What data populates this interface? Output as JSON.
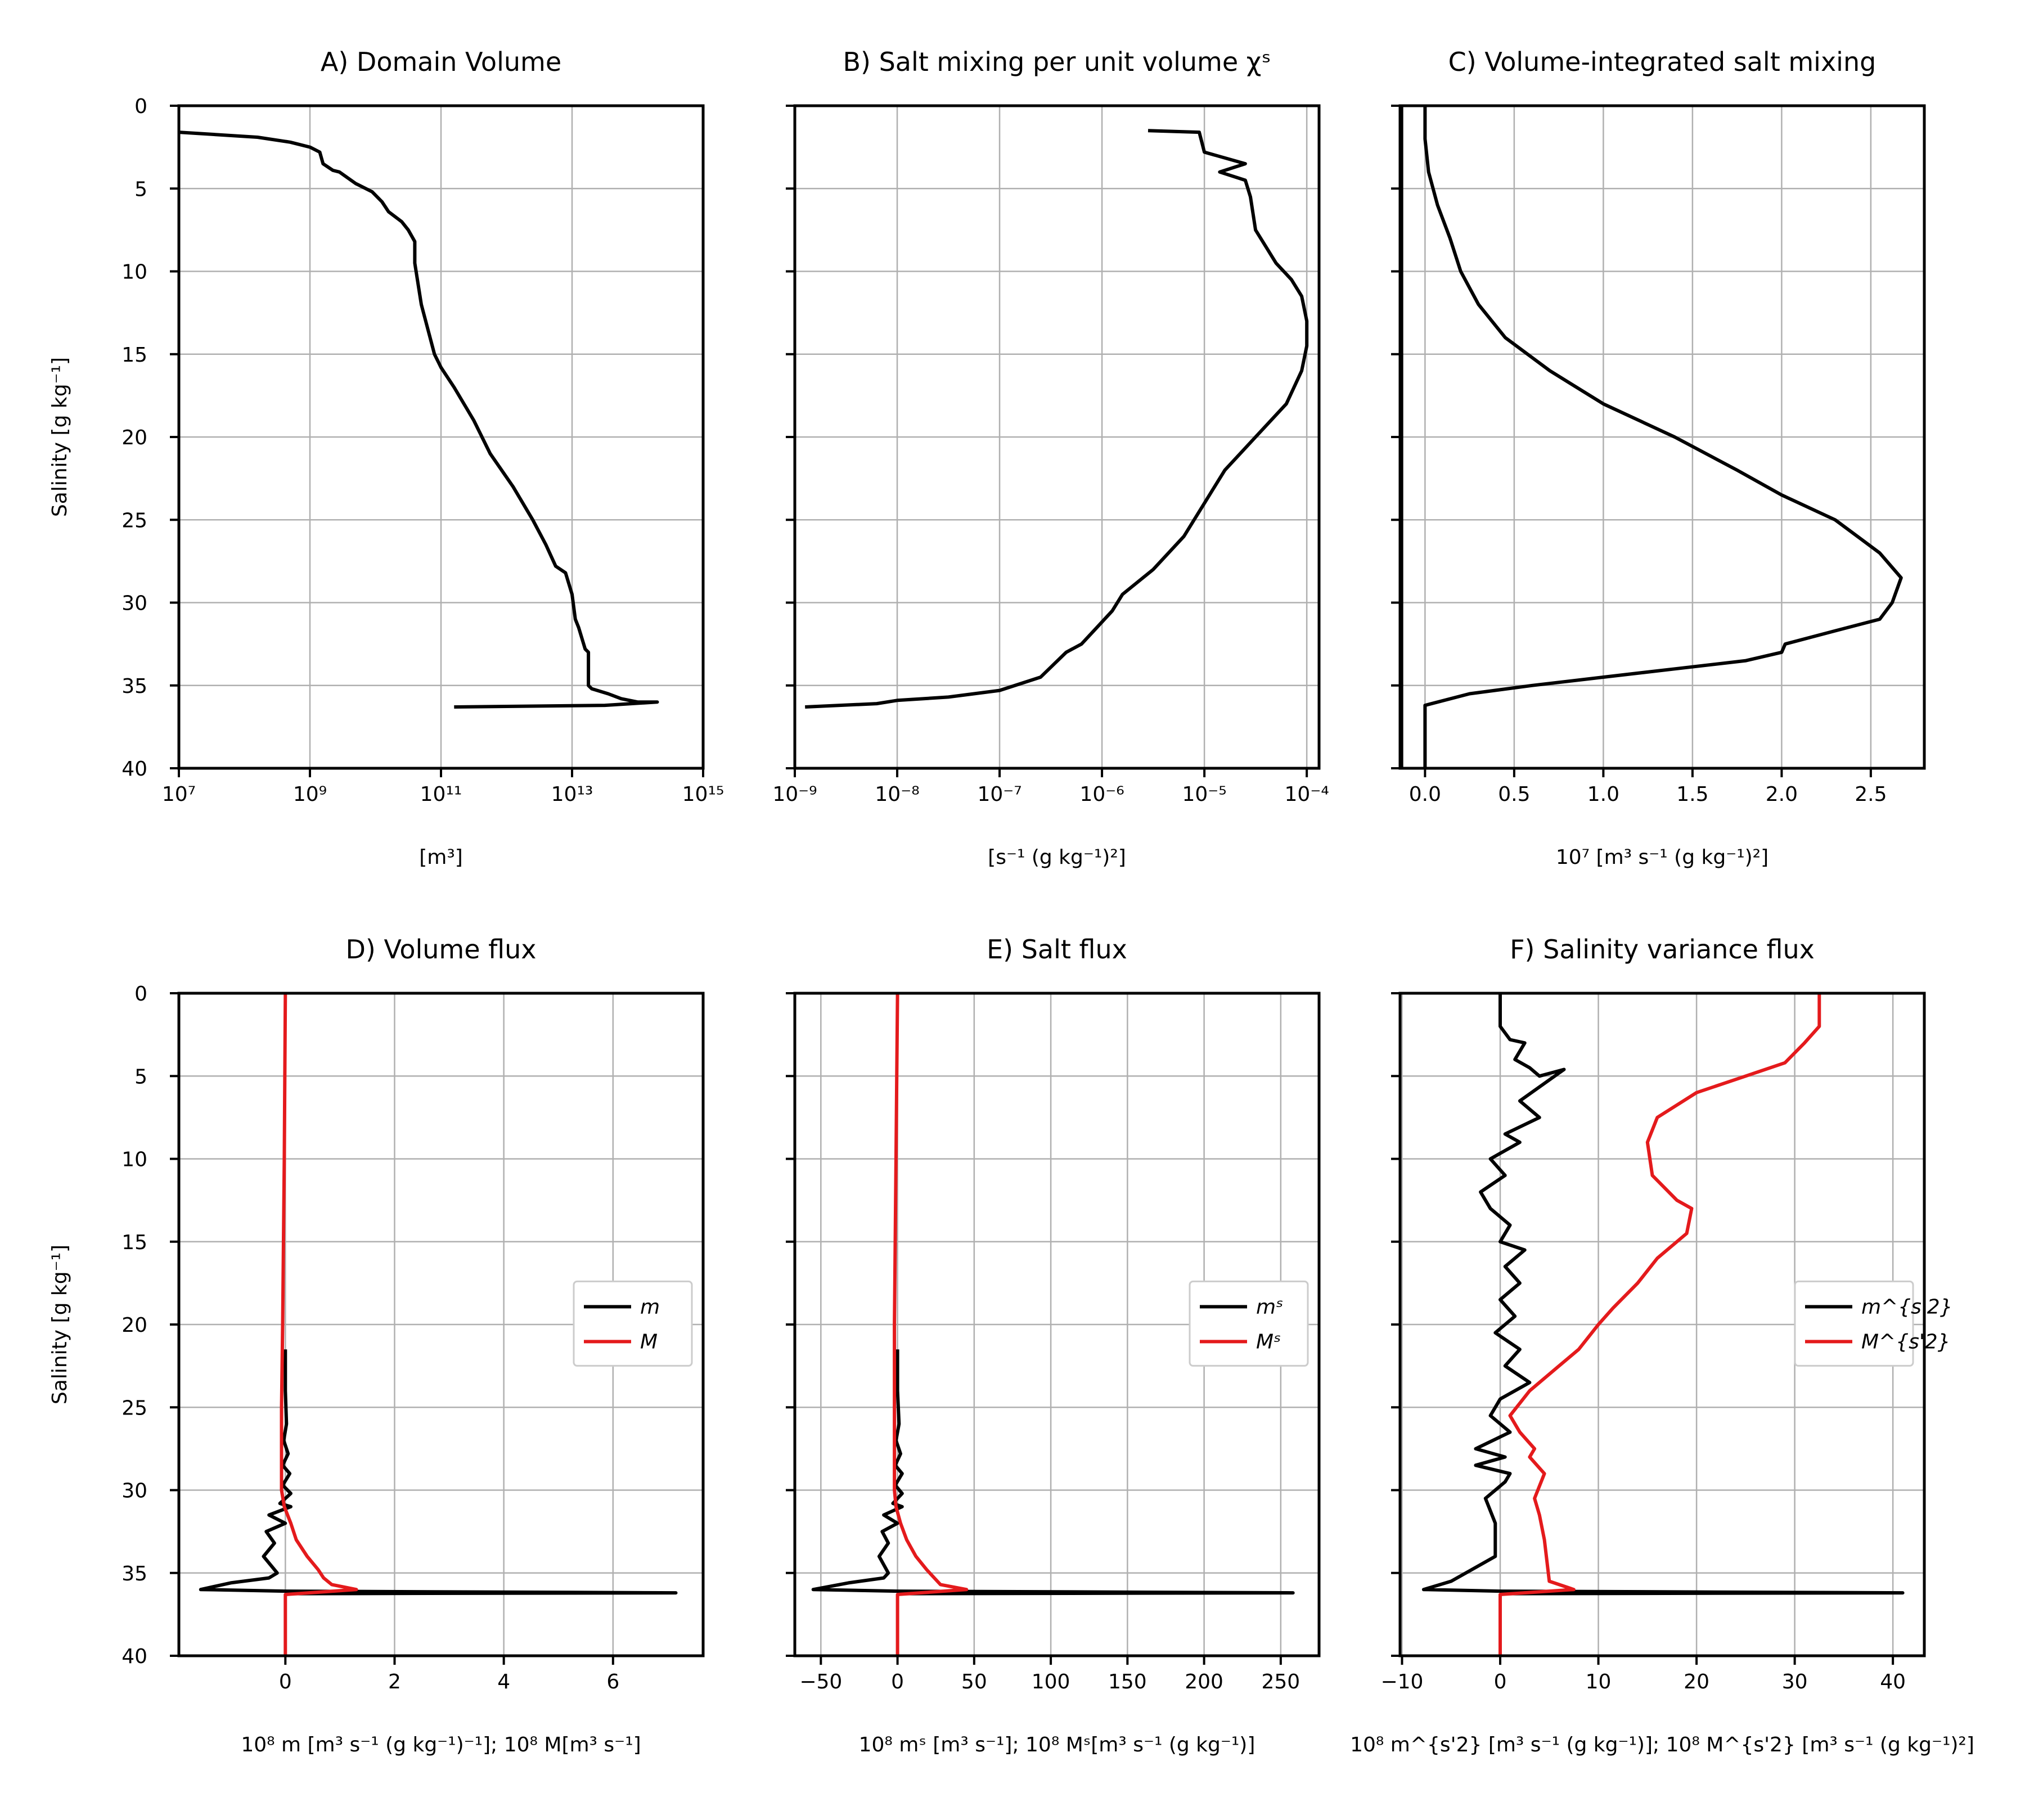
{
  "chart_data": [
    {
      "id": "A",
      "type": "line",
      "title": "A) Domain Volume",
      "xlabel": "[m³]",
      "ylabel": "Salinity [g kg⁻¹]",
      "xscale": "log",
      "xlim_exp": [
        7,
        15
      ],
      "xticks": [
        7,
        9,
        11,
        13,
        15
      ],
      "xtick_labels": [
        "10⁷",
        "10⁹",
        "10¹¹",
        "10¹³",
        "10¹⁵"
      ],
      "ylim": [
        40,
        0
      ],
      "yticks": [
        0,
        5,
        10,
        15,
        20,
        25,
        30,
        35,
        40
      ],
      "ytick_labels": [
        "0",
        "5",
        "10",
        "15",
        "20",
        "25",
        "30",
        "35",
        "40"
      ],
      "grid": true,
      "series": [
        {
          "color": "#000000",
          "x": [
            7.0,
            8.2,
            8.7,
            9.0,
            9.15,
            9.2,
            9.35,
            9.45,
            9.7,
            9.95,
            10.1,
            10.2,
            10.4,
            10.5,
            10.6,
            10.6,
            10.7,
            10.8,
            10.9,
            11.0,
            11.2,
            11.5,
            11.75,
            12.1,
            12.4,
            12.6,
            12.75,
            12.9,
            13.0,
            13.05,
            13.1,
            13.2,
            13.25,
            13.25,
            13.3,
            13.55,
            13.75,
            14.0,
            14.3,
            13.5,
            11.2
          ],
          "y": [
            1.6,
            1.9,
            2.2,
            2.5,
            2.8,
            3.5,
            3.9,
            4.0,
            4.7,
            5.2,
            5.8,
            6.4,
            7.0,
            7.5,
            8.2,
            9.5,
            12.0,
            13.5,
            15.0,
            15.8,
            17.0,
            19.0,
            21.0,
            23.0,
            25.0,
            26.5,
            27.8,
            28.2,
            29.5,
            31.0,
            31.5,
            32.8,
            33.0,
            35.0,
            35.2,
            35.5,
            35.8,
            36.0,
            36.0,
            36.2,
            36.3
          ]
        }
      ]
    },
    {
      "id": "B",
      "type": "line",
      "title": "B) Salt mixing per unit volume χˢ",
      "xlabel": "[s⁻¹ (g kg⁻¹)²]",
      "xscale": "log",
      "xlim_exp": [
        -9,
        -3.88
      ],
      "xticks": [
        -9,
        -8,
        -7,
        -6,
        -5,
        -4
      ],
      "xtick_labels": [
        "10⁻⁹",
        "10⁻⁸",
        "10⁻⁷",
        "10⁻⁶",
        "10⁻⁵",
        "10⁻⁴"
      ],
      "ylim": [
        40,
        0
      ],
      "yticks": [
        0,
        5,
        10,
        15,
        20,
        25,
        30,
        35,
        40
      ],
      "ytick_labels": [],
      "grid": true,
      "series": [
        {
          "color": "#000000",
          "x": [
            -5.55,
            -5.05,
            -5.0,
            -4.6,
            -4.85,
            -4.6,
            -4.55,
            -4.5,
            -4.4,
            -4.3,
            -4.15,
            -4.05,
            -4.0,
            -4.0,
            -4.05,
            -4.2,
            -4.5,
            -4.8,
            -5.0,
            -5.2,
            -5.5,
            -5.6,
            -5.8,
            -5.9,
            -6.05,
            -6.2,
            -6.35,
            -6.6,
            -7.0,
            -7.5,
            -8.0,
            -8.2,
            -8.9
          ],
          "y": [
            1.5,
            1.6,
            2.8,
            3.5,
            4.0,
            4.5,
            5.5,
            7.5,
            8.5,
            9.5,
            10.5,
            11.5,
            13.0,
            14.5,
            16.0,
            18.0,
            20.0,
            22.0,
            24.0,
            26.0,
            28.0,
            28.5,
            29.5,
            30.5,
            31.5,
            32.5,
            33.0,
            34.5,
            35.3,
            35.7,
            35.9,
            36.1,
            36.3
          ]
        }
      ]
    },
    {
      "id": "C",
      "type": "line",
      "title": "C) Volume-integrated salt mixing",
      "xlabel": "10⁷ [m³ s⁻¹ (g kg⁻¹)²]",
      "xlim": [
        -0.14,
        2.8
      ],
      "xticks": [
        0.0,
        0.5,
        1.0,
        1.5,
        2.0,
        2.5
      ],
      "xtick_labels": [
        "0.0",
        "0.5",
        "1.0",
        "1.5",
        "2.0",
        "2.5"
      ],
      "ylim": [
        40,
        0
      ],
      "yticks": [
        0,
        5,
        10,
        15,
        20,
        25,
        30,
        35,
        40
      ],
      "ytick_labels": [],
      "vline": -0.13,
      "grid": true,
      "series": [
        {
          "color": "#000000",
          "x": [
            0.0,
            0.0,
            0.02,
            0.07,
            0.14,
            0.2,
            0.3,
            0.45,
            0.7,
            1.0,
            1.4,
            1.75,
            2.0,
            2.3,
            2.55,
            2.67,
            2.62,
            2.55,
            2.3,
            2.02,
            2.0,
            1.8,
            1.4,
            1.0,
            0.6,
            0.25,
            0.0,
            0.0
          ],
          "y": [
            0.0,
            2.0,
            4.0,
            6.0,
            8.0,
            10.0,
            12.0,
            14.0,
            16.0,
            18.0,
            20.0,
            22.0,
            23.5,
            25.0,
            27.0,
            28.5,
            30.0,
            31.0,
            31.7,
            32.5,
            33.0,
            33.5,
            34.0,
            34.5,
            35.0,
            35.5,
            36.2,
            40.0
          ]
        }
      ]
    },
    {
      "id": "D",
      "type": "line",
      "title": "D) Volume flux",
      "xlabel": "10⁸ m [m³ s⁻¹ (g kg⁻¹)⁻¹]; 10⁸ M[m³ s⁻¹]",
      "ylabel": "Salinity [g kg⁻¹]",
      "xlim": [
        -1.95,
        7.65
      ],
      "xticks": [
        0,
        2,
        4,
        6
      ],
      "xtick_labels": [
        "0",
        "2",
        "4",
        "6"
      ],
      "ylim": [
        40,
        0
      ],
      "yticks": [
        0,
        5,
        10,
        15,
        20,
        25,
        30,
        35,
        40
      ],
      "ytick_labels": [
        "0",
        "5",
        "10",
        "15",
        "20",
        "25",
        "30",
        "35",
        "40"
      ],
      "grid": true,
      "legend": {
        "position": "right",
        "entries": [
          "m",
          "M"
        ]
      },
      "series": [
        {
          "name": "m",
          "color": "#000000",
          "x": [
            0.0,
            0.0,
            0.02,
            -0.03,
            0.05,
            -0.05,
            0.08,
            -0.05,
            0.1,
            -0.1,
            0.1,
            -0.3,
            0.0,
            -0.35,
            -0.2,
            -0.4,
            -0.15,
            -0.3,
            -1.0,
            -1.55,
            0.0,
            7.15,
            0.0
          ],
          "x_note": "",
          "y": [
            21.5,
            24.0,
            26.0,
            27.0,
            27.8,
            28.5,
            29.0,
            29.7,
            30.2,
            30.8,
            31.0,
            31.5,
            32.0,
            32.5,
            33.2,
            34.0,
            35.0,
            35.3,
            35.6,
            36.0,
            36.1,
            36.2,
            36.25
          ]
        },
        {
          "name": "M",
          "color": "#e41a1c",
          "x": [
            0.0,
            -0.02,
            -0.05,
            -0.07,
            -0.07,
            -0.02,
            0.1,
            0.2,
            0.4,
            0.6,
            0.7,
            0.85,
            1.3,
            0.0,
            0.0
          ],
          "y": [
            0.0,
            10.0,
            20.0,
            25.0,
            30.0,
            31.0,
            32.0,
            33.0,
            34.0,
            34.8,
            35.3,
            35.7,
            36.0,
            36.3,
            40.0
          ]
        }
      ]
    },
    {
      "id": "E",
      "type": "line",
      "title": "E) Salt flux",
      "xlabel": "10⁸ mˢ [m³ s⁻¹]; 10⁸ Mˢ[m³ s⁻¹ (g kg⁻¹)]",
      "xlim": [
        -67,
        275
      ],
      "xticks": [
        -50,
        0,
        50,
        100,
        150,
        200,
        250
      ],
      "xtick_labels": [
        "−50",
        "0",
        "50",
        "100",
        "150",
        "200",
        "250"
      ],
      "ylim": [
        40,
        0
      ],
      "yticks": [
        0,
        5,
        10,
        15,
        20,
        25,
        30,
        35,
        40
      ],
      "ytick_labels": [],
      "grid": true,
      "legend": {
        "position": "right",
        "entries": [
          "mˢ",
          "Mˢ"
        ]
      },
      "series": [
        {
          "name": "mˢ",
          "color": "#000000",
          "x": [
            0.0,
            0.0,
            1.0,
            -1.0,
            2.0,
            -1.5,
            3.0,
            -1.5,
            3.0,
            -3.0,
            3.0,
            -9.0,
            0.0,
            -10.0,
            -6.0,
            -12.0,
            -6.0,
            -9.0,
            -32.0,
            -55.0,
            0.0,
            258.0,
            0.0
          ],
          "y": [
            21.5,
            24.0,
            26.0,
            27.0,
            27.8,
            28.5,
            29.0,
            29.7,
            30.2,
            30.8,
            31.0,
            31.5,
            32.0,
            32.5,
            33.2,
            34.0,
            35.0,
            35.3,
            35.6,
            36.0,
            36.1,
            36.2,
            36.25
          ]
        },
        {
          "name": "Mˢ",
          "color": "#e41a1c",
          "x": [
            0.0,
            -1.0,
            -2.0,
            -2.0,
            -1.0,
            2.0,
            6.0,
            12.0,
            19.0,
            24.0,
            28.0,
            45.0,
            0.0,
            0.0
          ],
          "y": [
            0.0,
            10.0,
            20.0,
            30.0,
            31.0,
            32.0,
            33.0,
            34.0,
            34.8,
            35.3,
            35.7,
            36.0,
            36.3,
            40.0
          ]
        }
      ]
    },
    {
      "id": "F",
      "type": "line",
      "title": "F) Salinity variance flux",
      "xlabel": "10⁸ m^{s'2} [m³ s⁻¹ (g kg⁻¹)]; 10⁸ M^{s'2} [m³ s⁻¹ (g kg⁻¹)²]",
      "xlim": [
        -10.2,
        43.2
      ],
      "xticks": [
        -10,
        0,
        10,
        20,
        30,
        40
      ],
      "xtick_labels": [
        "−10",
        "0",
        "10",
        "20",
        "30",
        "40"
      ],
      "ylim": [
        40,
        0
      ],
      "yticks": [
        0,
        5,
        10,
        15,
        20,
        25,
        30,
        35,
        40
      ],
      "ytick_labels": [],
      "grid": true,
      "legend": {
        "position": "right",
        "entries": [
          "m^{s'2}",
          "M^{s'2}"
        ]
      },
      "series": [
        {
          "name": "m^{s'2}",
          "color": "#000000",
          "x": [
            0.0,
            0.0,
            1.0,
            2.5,
            1.5,
            3.0,
            4.0,
            6.5,
            2.0,
            4.0,
            0.5,
            2.0,
            -1.0,
            0.5,
            -2.0,
            -1.0,
            1.0,
            0.0,
            2.5,
            0.5,
            2.0,
            0.0,
            1.5,
            -0.5,
            2.0,
            0.5,
            3.0,
            0.0,
            -1.0,
            1.0,
            -2.5,
            0.5,
            -2.5,
            1.0,
            0.5,
            -1.5,
            -0.5,
            -0.5,
            -5.0,
            -7.8,
            0.0,
            41.0,
            0.0
          ],
          "y": [
            0.0,
            2.0,
            2.8,
            3.0,
            4.0,
            4.5,
            5.0,
            4.6,
            6.5,
            7.5,
            8.5,
            9.0,
            10.0,
            11.0,
            12.0,
            13.0,
            14.0,
            15.0,
            15.5,
            16.5,
            17.5,
            18.5,
            19.5,
            20.5,
            21.5,
            22.5,
            23.5,
            24.5,
            25.5,
            26.5,
            27.5,
            28.0,
            28.5,
            29.0,
            29.5,
            30.5,
            32.0,
            34.0,
            35.5,
            36.0,
            36.1,
            36.2,
            36.25
          ]
        },
        {
          "name": "M^{s'2}",
          "color": "#e41a1c",
          "x": [
            32.5,
            32.5,
            31.0,
            29.0,
            25.0,
            20.0,
            16.0,
            15.0,
            15.5,
            18.0,
            19.5,
            19.0,
            16.0,
            14.0,
            11.5,
            10.0,
            8.0,
            6.0,
            3.0,
            1.0,
            2.0,
            3.5,
            3.0,
            4.5,
            3.5,
            4.0,
            4.5,
            5.0,
            7.5,
            0.0,
            0.0
          ],
          "y": [
            0.0,
            2.0,
            3.0,
            4.2,
            5.0,
            6.0,
            7.5,
            9.0,
            11.0,
            12.5,
            13.0,
            14.5,
            16.0,
            17.5,
            19.0,
            20.0,
            21.5,
            22.5,
            24.0,
            25.5,
            26.5,
            27.5,
            28.0,
            29.0,
            30.5,
            31.5,
            33.0,
            35.5,
            36.0,
            36.3,
            40.0
          ]
        }
      ]
    }
  ]
}
